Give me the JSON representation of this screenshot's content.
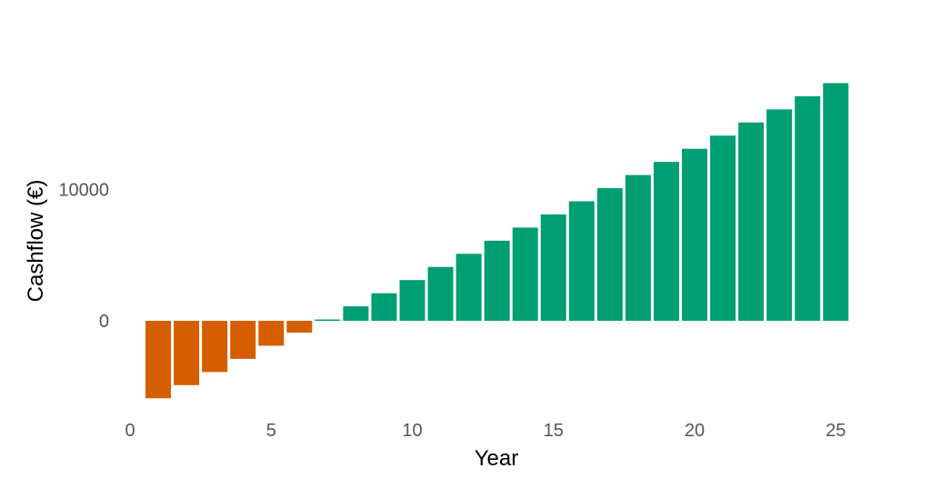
{
  "chart_data": {
    "type": "bar",
    "title": "",
    "xlabel": "Year",
    "ylabel": "Cashflow (€)",
    "xlim": [
      0,
      25.5
    ],
    "ylim": [
      -7500,
      19500
    ],
    "x_ticks": [
      0,
      5,
      10,
      15,
      20,
      25
    ],
    "y_ticks": [
      0,
      10000
    ],
    "grid": false,
    "legend": "none",
    "colors": {
      "negative": "#d55e00",
      "positive": "#009e73"
    },
    "x": [
      1,
      2,
      3,
      4,
      5,
      6,
      7,
      8,
      9,
      10,
      11,
      12,
      13,
      14,
      15,
      16,
      17,
      18,
      19,
      20,
      21,
      22,
      23,
      24,
      25
    ],
    "values": [
      -5900,
      -4900,
      -3900,
      -2900,
      -1900,
      -900,
      100,
      1100,
      2100,
      3100,
      4100,
      5100,
      6100,
      7100,
      8100,
      9100,
      10100,
      11100,
      12100,
      13100,
      14100,
      15100,
      16100,
      17100,
      18100
    ]
  }
}
